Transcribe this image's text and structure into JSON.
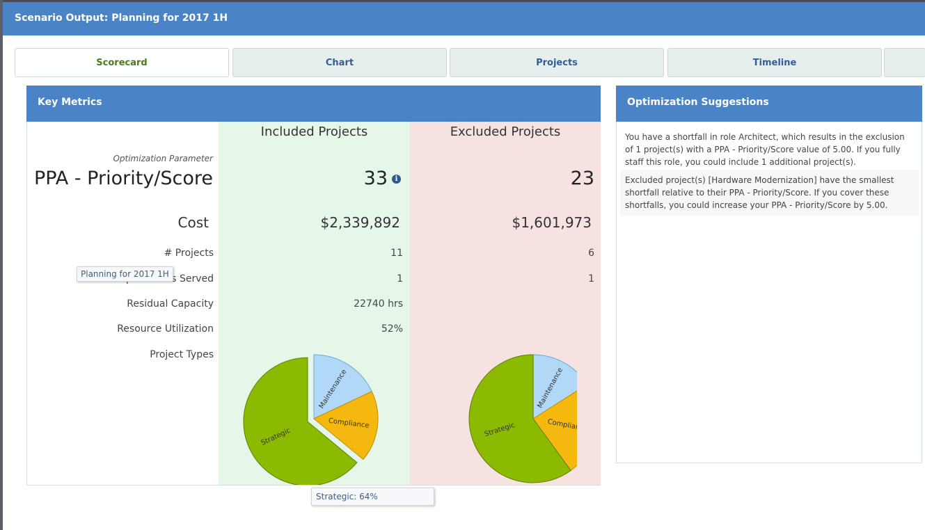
{
  "window": {
    "title": "Scenario Output: Planning for 2017 1H"
  },
  "tabs": [
    {
      "label": "Scorecard"
    },
    {
      "label": "Chart"
    },
    {
      "label": "Projects"
    },
    {
      "label": "Timeline"
    }
  ],
  "key_metrics": {
    "title": "Key Metrics",
    "included_title": "Included Projects",
    "excluded_title": "Excluded Projects",
    "optimization_parameter_label": "Optimization Parameter",
    "parameter_name": "PPA - Priority/Score",
    "parameter_included": "33",
    "parameter_excluded": "23",
    "cost_label": "Cost",
    "cost_included": "$2,339,892",
    "cost_excluded": "$1,601,973",
    "projects_label": "# Projects",
    "projects_included": "11",
    "projects_excluded": "6",
    "departments_label": "# Departments Served",
    "departments_included": "1",
    "departments_excluded": "1",
    "residual_label": "Residual Capacity",
    "residual_included": "22740 hrs",
    "utilization_label": "Resource Utilization",
    "utilization_included": "52%",
    "project_types_label": "Project Types"
  },
  "chart_data": [
    {
      "type": "pie",
      "categories": [
        "Strategic",
        "Maintenance",
        "Compliance"
      ],
      "values": [
        64,
        18,
        18
      ],
      "colors": [
        "#8cba00",
        "#b1d8f7",
        "#f5b80e"
      ],
      "exploded": "Strategic"
    },
    {
      "type": "pie",
      "categories": [
        "Strategic",
        "Maintenance",
        "Compliance"
      ],
      "values": [
        60,
        16,
        24
      ],
      "colors": [
        "#8cba00",
        "#b1d8f7",
        "#f5b80e"
      ]
    }
  ],
  "optimization": {
    "title": "Optimization Suggestions",
    "suggestions": [
      "You have a shortfall in role Architect, which results in the exclusion of 1 project(s) with a PPA - Priority/Score value of 5.00. If you fully staff this role, you could include 1 additional project(s).",
      "Excluded project(s) [Hardware Modernization] have the smallest shortfall relative to their PPA - Priority/Score. If you cover these shortfalls, you could increase your PPA - Priority/Score by 5.00."
    ]
  },
  "tooltips": {
    "scenario": "Planning for 2017 1H",
    "slice": "Strategic: 64%"
  },
  "icons": {
    "info": "info-icon"
  }
}
